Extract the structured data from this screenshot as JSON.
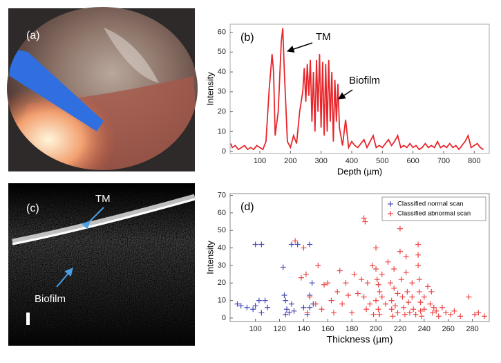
{
  "images": [
    {
      "label": "(a)"
    },
    {
      "label": "(c)",
      "annotations": [
        "TM",
        "Biofilm"
      ]
    }
  ],
  "chart_data": [
    {
      "type": "line",
      "label": "(b)",
      "xlabel": "Depth (µm)",
      "ylabel": "Intensity",
      "annotations": [
        "TM",
        "Biofilm"
      ],
      "xlim": [
        3,
        849
      ],
      "ylim": [
        -1,
        64
      ],
      "xticks": [
        100,
        200,
        300,
        400,
        500,
        600,
        700,
        800
      ],
      "yticks": [
        0,
        10,
        20,
        30,
        40,
        50,
        60
      ],
      "x": [
        5,
        10,
        20,
        30,
        40,
        50,
        60,
        70,
        80,
        90,
        100,
        110,
        120,
        130,
        140,
        145,
        150,
        160,
        170,
        175,
        180,
        190,
        200,
        210,
        220,
        230,
        240,
        245,
        250,
        255,
        260,
        265,
        270,
        275,
        280,
        285,
        290,
        295,
        300,
        305,
        310,
        315,
        320,
        325,
        330,
        335,
        340,
        345,
        350,
        355,
        360,
        370,
        380,
        390,
        400,
        410,
        420,
        430,
        440,
        450,
        460,
        470,
        480,
        490,
        500,
        510,
        520,
        530,
        540,
        550,
        560,
        570,
        580,
        590,
        600,
        610,
        620,
        630,
        640,
        650,
        660,
        670,
        680,
        690,
        700,
        710,
        720,
        730,
        740,
        750,
        760,
        770,
        780,
        790,
        800,
        810,
        820,
        830
      ],
      "series": [
        {
          "color": "#e8262b",
          "values": [
            4,
            2,
            3,
            1,
            2,
            3,
            1,
            2,
            1,
            3,
            2,
            1,
            5,
            30,
            49,
            40,
            8,
            20,
            55,
            62,
            40,
            5,
            2,
            8,
            4,
            20,
            30,
            42,
            25,
            44,
            28,
            46,
            15,
            40,
            10,
            46,
            20,
            49,
            12,
            45,
            8,
            44,
            10,
            46,
            15,
            40,
            5,
            36,
            15,
            34,
            12,
            3,
            16,
            2,
            5,
            3,
            2,
            4,
            6,
            2,
            5,
            8,
            2,
            3,
            2,
            4,
            6,
            3,
            5,
            8,
            2,
            3,
            2,
            4,
            2,
            3,
            1,
            2,
            4,
            2,
            3,
            2,
            5,
            2,
            3,
            2,
            4,
            2,
            3,
            1,
            3,
            5,
            8,
            2,
            3,
            4,
            2,
            1
          ]
        }
      ]
    },
    {
      "type": "scatter",
      "label": "(d)",
      "xlabel": "Thickness (µm)",
      "ylabel": "Intensity",
      "xlim": [
        79,
        294
      ],
      "ylim": [
        -2,
        71
      ],
      "xticks": [
        100,
        120,
        140,
        160,
        180,
        200,
        220,
        240,
        260,
        280
      ],
      "yticks": [
        0,
        10,
        20,
        30,
        40,
        50,
        60,
        70
      ],
      "legend": "upper right",
      "series": [
        {
          "name": "Classified normal scan",
          "color": "#4a4ab8",
          "x": [
            85,
            88,
            93,
            100,
            105,
            98,
            100,
            103,
            105,
            108,
            110,
            123,
            124,
            125,
            126,
            125,
            128,
            130,
            135,
            130,
            132,
            140,
            145,
            145,
            147,
            145,
            143,
            148
          ],
          "values": [
            8,
            7,
            6,
            42,
            42,
            5,
            7,
            10,
            3,
            10,
            6,
            29,
            13,
            10,
            5,
            2,
            3,
            42,
            42,
            8,
            4,
            6,
            42,
            13,
            20,
            6,
            2,
            8
          ]
        },
        {
          "name": "Classified abnormal scan",
          "color": "#ee4444",
          "x": [
            133,
            138,
            140,
            142,
            143,
            145,
            150,
            152,
            155,
            157,
            160,
            163,
            165,
            168,
            170,
            172,
            175,
            177,
            180,
            182,
            185,
            188,
            190,
            191,
            190,
            192,
            193,
            195,
            197,
            198,
            200,
            200,
            201,
            202,
            203,
            200,
            202,
            203,
            205,
            205,
            208,
            210,
            212,
            213,
            213,
            214,
            215,
            215,
            216,
            218,
            218,
            220,
            220,
            221,
            222,
            223,
            224,
            225,
            225,
            226,
            227,
            228,
            230,
            230,
            231,
            233,
            235,
            235,
            235,
            236,
            236,
            237,
            237,
            238,
            240,
            240,
            243,
            245,
            246,
            247,
            248,
            250,
            252,
            255,
            258,
            262,
            265,
            270,
            277,
            282,
            285,
            290
          ],
          "values": [
            44,
            23,
            40,
            25,
            3,
            12,
            8,
            30,
            5,
            19,
            20,
            10,
            3,
            15,
            27,
            8,
            20,
            13,
            3,
            25,
            14,
            22,
            57,
            55,
            12,
            5,
            20,
            8,
            30,
            2,
            40,
            28,
            22,
            19,
            15,
            10,
            5,
            2,
            12,
            25,
            8,
            32,
            20,
            10,
            5,
            1,
            28,
            17,
            7,
            14,
            3,
            51,
            38,
            22,
            12,
            6,
            2,
            35,
            26,
            15,
            9,
            3,
            20,
            12,
            5,
            2,
            42,
            36,
            30,
            22,
            15,
            9,
            4,
            1,
            12,
            5,
            18,
            8,
            15,
            3,
            6,
            4,
            1,
            6,
            3,
            2,
            4,
            1,
            12,
            2,
            3,
            1
          ]
        }
      ]
    }
  ]
}
